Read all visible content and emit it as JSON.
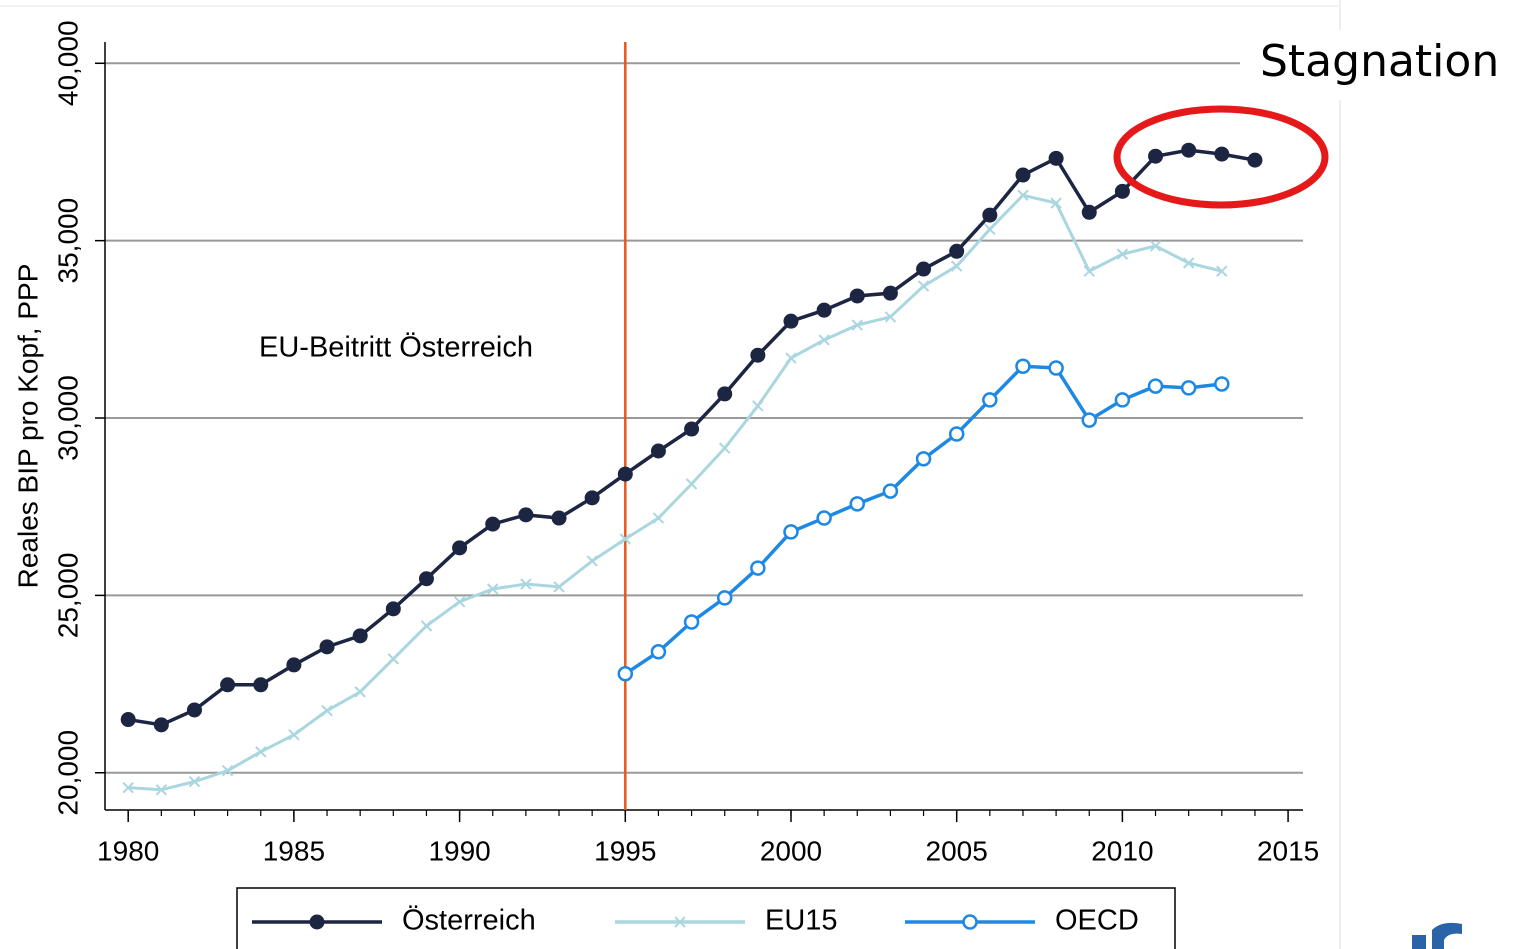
{
  "chart_data": {
    "type": "line",
    "y_label": "Reales BIP pro Kopf, PPP",
    "x": [
      1980,
      1981,
      1982,
      1983,
      1984,
      1985,
      1986,
      1987,
      1988,
      1989,
      1990,
      1991,
      1992,
      1993,
      1994,
      1995,
      1996,
      1997,
      1998,
      1999,
      2000,
      2001,
      2002,
      2003,
      2004,
      2005,
      2006,
      2007,
      2008,
      2009,
      2010,
      2011,
      2012,
      2013,
      2014
    ],
    "series": [
      {
        "name": "Österreich",
        "color": "#1c2541",
        "marker": "dot",
        "values": [
          21500,
          21350,
          21770,
          22480,
          22480,
          23040,
          23550,
          23860,
          24620,
          25470,
          26340,
          27010,
          27270,
          27180,
          27750,
          28420,
          29070,
          29690,
          30680,
          31770,
          32730,
          33040,
          33440,
          33520,
          34200,
          34700,
          35720,
          36850,
          37320,
          35800,
          36390,
          37380,
          37550,
          37440,
          37270
        ]
      },
      {
        "name": "EU15",
        "color": "#a9d6df",
        "marker": "cross",
        "values": [
          19580,
          19520,
          19750,
          20060,
          20590,
          21070,
          21750,
          22280,
          23210,
          24140,
          24820,
          25180,
          25320,
          25240,
          25970,
          26590,
          27180,
          28140,
          29150,
          30340,
          31690,
          32200,
          32620,
          32850,
          33720,
          34280,
          35320,
          36280,
          36060,
          34140,
          34620,
          34850,
          34370,
          34140,
          null
        ]
      },
      {
        "name": "OECD",
        "color": "#1e88e5",
        "marker": "ring",
        "values": [
          null,
          null,
          null,
          null,
          null,
          null,
          null,
          null,
          null,
          null,
          null,
          null,
          null,
          null,
          null,
          22790,
          23410,
          24250,
          24930,
          25770,
          26790,
          27180,
          27580,
          27940,
          28850,
          29550,
          30510,
          31460,
          31410,
          29940,
          30510,
          30900,
          30850,
          30960,
          null
        ]
      }
    ],
    "xlim": [
      1979.3,
      2015.45
    ],
    "xticks": [
      1980,
      1985,
      1990,
      1995,
      2000,
      2005,
      2010,
      2015
    ],
    "ylim": [
      18950,
      40600
    ],
    "yticks": [
      {
        "value": 20000,
        "label": "20,000"
      },
      {
        "value": 25000,
        "label": "25,000"
      },
      {
        "value": 30000,
        "label": "30,000"
      },
      {
        "value": 35000,
        "label": "35,000"
      },
      {
        "value": 40000,
        "label": "40,000"
      }
    ],
    "grid": true,
    "vline": {
      "x": 1995,
      "color": "#e8561e",
      "label": "EU-Beitritt Österreich"
    },
    "annotation": "Stagnation"
  }
}
